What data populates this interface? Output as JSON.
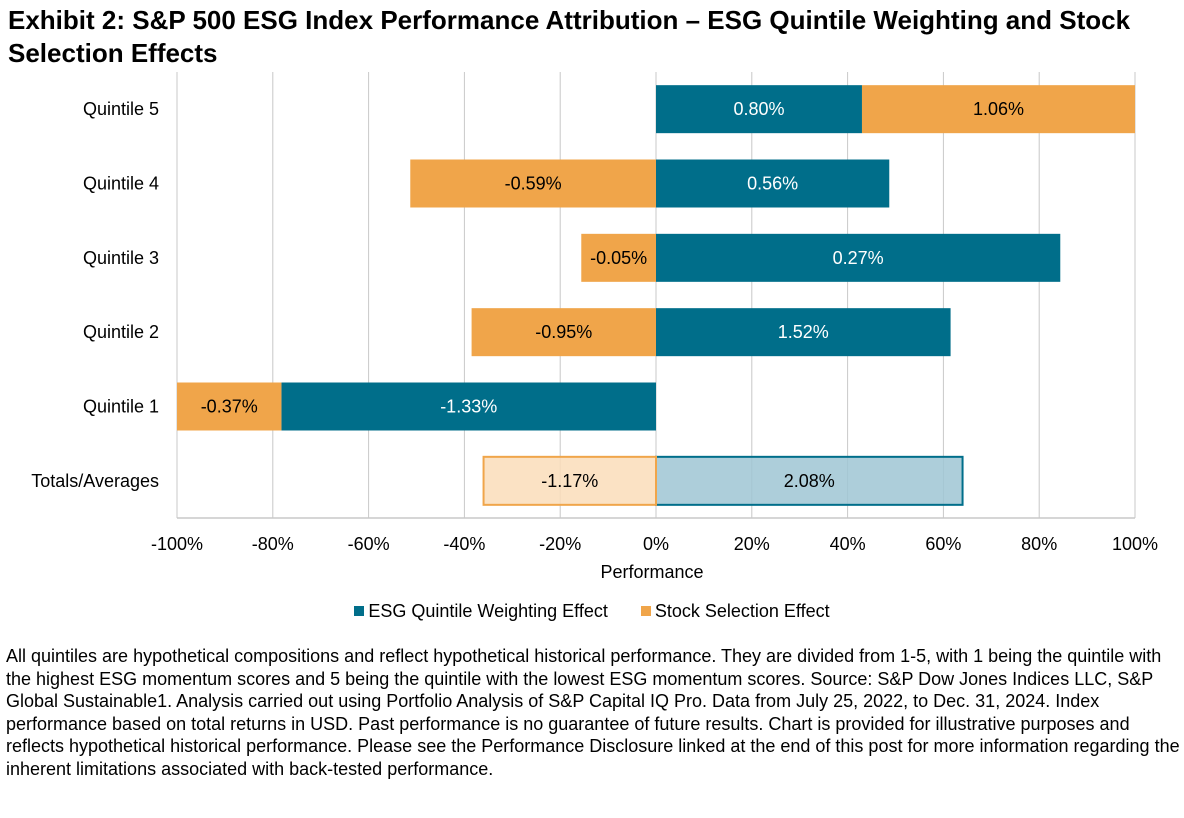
{
  "title": "Exhibit 2: S&P 500 ESG Index Performance Attribution – ESG Quintile Weighting and Stock Selection Effects",
  "colors": {
    "weighting": "#006E8A",
    "selection": "#F0A54A",
    "weighting_total_fill": "#9FC6D3",
    "selection_total_fill": "#FADDBA",
    "grid": "#C8C8C8"
  },
  "chart_data": {
    "type": "bar",
    "orientation": "horizontal",
    "stacked": "100% (absolute contribution share, diverging around 0)",
    "title": "Exhibit 2: S&P 500 ESG Index Performance Attribution – ESG Quintile Weighting and Stock Selection Effects",
    "xlabel": "Performance",
    "ylabel": "",
    "xlim": [
      -100,
      100
    ],
    "x_ticks": [
      "-100%",
      "-80%",
      "-60%",
      "-40%",
      "-20%",
      "0%",
      "20%",
      "40%",
      "60%",
      "80%",
      "100%"
    ],
    "x_tick_values": [
      -100,
      -80,
      -60,
      -40,
      -20,
      0,
      20,
      40,
      60,
      80,
      100
    ],
    "grid": true,
    "legend_position": "bottom",
    "categories": [
      "Quintile 5",
      "Quintile 4",
      "Quintile 3",
      "Quintile 2",
      "Quintile 1",
      "Totals/Averages"
    ],
    "series": [
      {
        "name": "ESG Quintile Weighting Effect",
        "labels": [
          "0.80%",
          "0.56%",
          "0.27%",
          "1.52%",
          "-1.33%",
          "2.08%"
        ],
        "effect_values": [
          0.8,
          0.56,
          0.27,
          1.52,
          -1.33,
          2.08
        ],
        "share_pct": [
          43.0,
          48.7,
          84.4,
          61.5,
          -78.2,
          64.0
        ]
      },
      {
        "name": "Stock Selection Effect",
        "labels": [
          "1.06%",
          "-0.59%",
          "-0.05%",
          "-0.95%",
          "-0.37%",
          "-1.17%"
        ],
        "effect_values": [
          1.06,
          -0.59,
          -0.05,
          -0.95,
          -0.37,
          -1.17
        ],
        "share_pct": [
          57.0,
          -51.3,
          -15.6,
          -38.5,
          -21.8,
          -36.0
        ]
      }
    ]
  },
  "legend": [
    {
      "label": "ESG Quintile Weighting Effect",
      "color": "#006E8A"
    },
    {
      "label": "Stock Selection Effect",
      "color": "#F0A54A"
    }
  ],
  "footnote": "All quintiles are hypothetical compositions and reflect hypothetical historical performance. They are divided from 1-5, with 1 being the quintile with the highest ESG momentum scores and 5 being the quintile with the lowest ESG momentum scores. Source: S&P Dow Jones Indices LLC, S&P Global Sustainable1. Analysis carried out using Portfolio Analysis of S&P Capital IQ Pro. Data from July 25, 2022, to Dec. 31, 2024. Index performance based on total returns in USD. Past performance is no guarantee of future results. Chart is provided for illustrative purposes and reflects hypothetical historical performance. Please see the Performance Disclosure linked at the end of this post for more information regarding the inherent limitations associated with back-tested performance."
}
